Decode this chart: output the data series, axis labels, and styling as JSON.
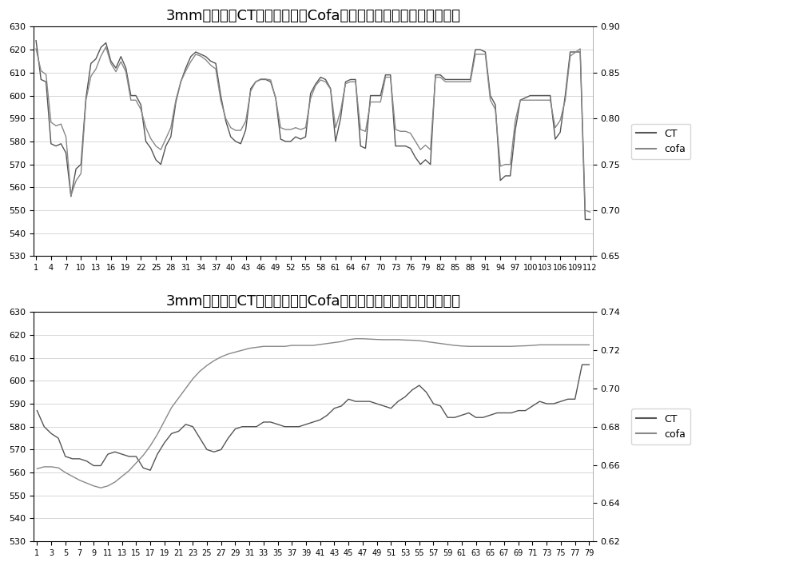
{
  "title1": "3mm集装箱板CT温度与自适应Cofa修正系数对应关系（本发明前）",
  "title2": "3mm集装箱板CT温度与自适应Cofa修正系数对应关系（本发明后）",
  "ct1_ylim": [
    530,
    630
  ],
  "cofa1_ylim": [
    0.65,
    0.9
  ],
  "ct2_ylim": [
    530,
    630
  ],
  "cofa2_ylim": [
    0.62,
    0.74
  ],
  "ct1_yticks": [
    530,
    540,
    550,
    560,
    570,
    580,
    590,
    600,
    610,
    620,
    630
  ],
  "cofa1_yticks": [
    0.65,
    0.7,
    0.75,
    0.8,
    0.85,
    0.9
  ],
  "ct2_yticks": [
    530,
    540,
    550,
    560,
    570,
    580,
    590,
    600,
    610,
    620,
    630
  ],
  "cofa2_yticks": [
    0.62,
    0.64,
    0.66,
    0.68,
    0.7,
    0.72,
    0.74
  ],
  "xticks1": [
    1,
    4,
    7,
    10,
    13,
    16,
    19,
    22,
    25,
    28,
    31,
    34,
    37,
    40,
    43,
    46,
    49,
    52,
    55,
    58,
    61,
    64,
    67,
    70,
    73,
    76,
    79,
    82,
    85,
    88,
    91,
    94,
    97,
    100,
    103,
    106,
    109,
    112
  ],
  "xticks2": [
    1,
    3,
    5,
    7,
    9,
    11,
    13,
    15,
    17,
    19,
    21,
    23,
    25,
    27,
    29,
    31,
    33,
    35,
    37,
    39,
    41,
    43,
    45,
    47,
    49,
    51,
    53,
    55,
    57,
    59,
    61,
    63,
    65,
    67,
    69,
    71,
    73,
    75,
    77,
    79
  ],
  "n1": 112,
  "n2": 79,
  "bg_color": "#ffffff",
  "grid_color": "#d0d0d0",
  "line_ct": "#555555",
  "line_cofa": "#888888",
  "title_fontsize": 13,
  "tick_fontsize": 8,
  "legend_fontsize": 9
}
